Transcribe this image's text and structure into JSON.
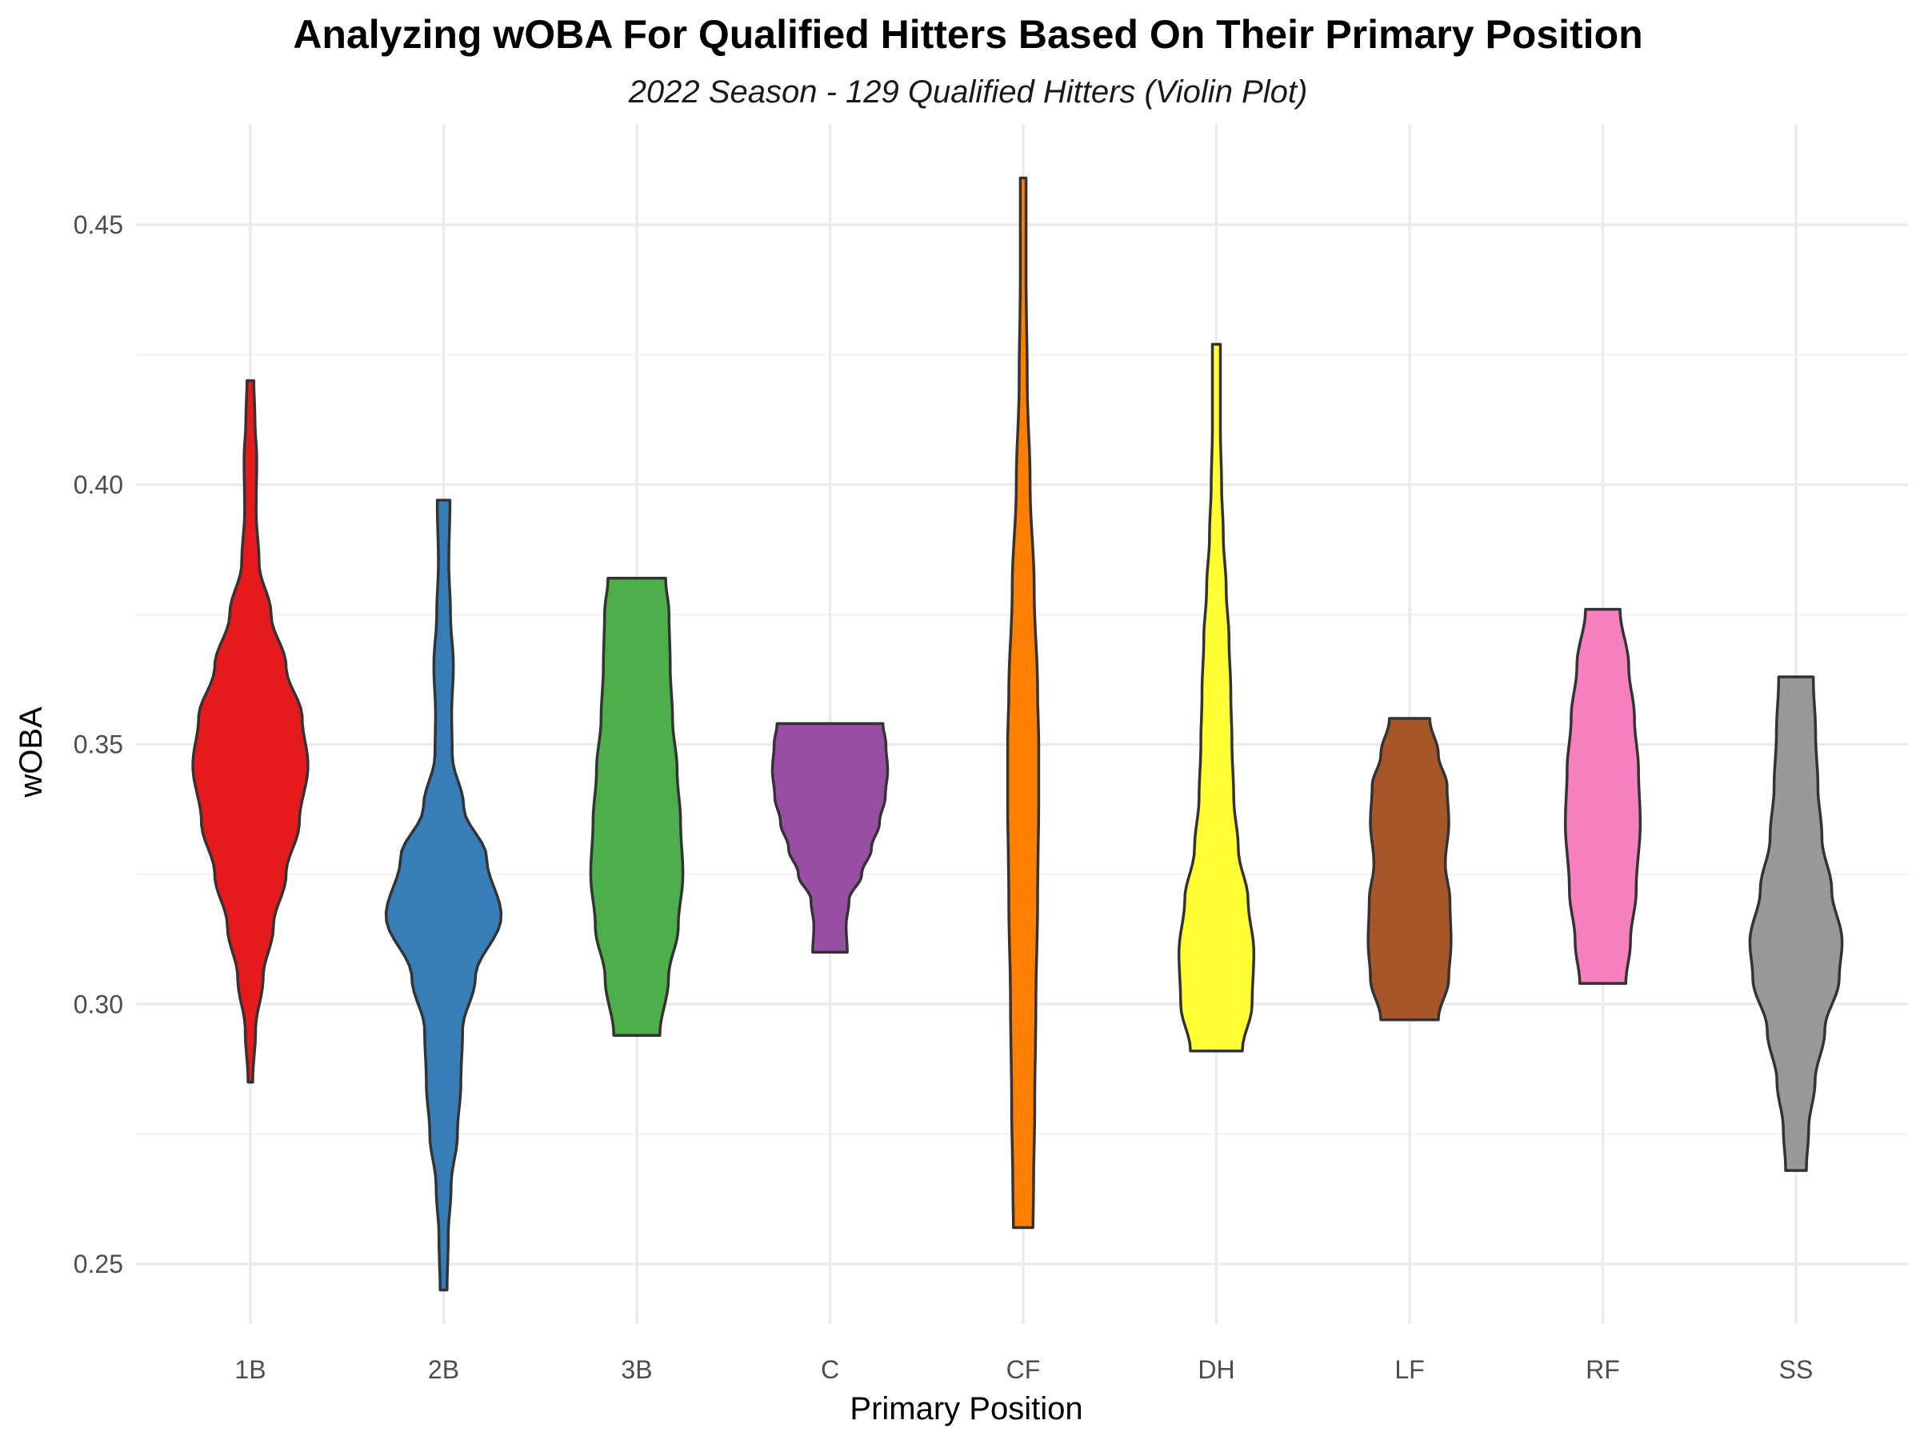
{
  "chart_data": {
    "type": "violin",
    "title": "Analyzing wOBA For Qualified Hitters Based On Their Primary Position",
    "subtitle": "2022 Season - 129 Qualified Hitters (Violin Plot)",
    "xlabel": "Primary Position",
    "ylabel": "wOBA",
    "ylim": [
      0.238,
      0.466
    ],
    "yticks": [
      0.25,
      0.3,
      0.35,
      0.4,
      0.45
    ],
    "ytick_labels": [
      "0.25",
      "0.30",
      "0.35",
      "0.40",
      "0.45"
    ],
    "grid": true,
    "legend": "none",
    "categories": [
      "1B",
      "2B",
      "3B",
      "C",
      "CF",
      "DH",
      "LF",
      "RF",
      "SS"
    ],
    "series": [
      {
        "color": "#E41A1C",
        "min": 0.285,
        "max": 0.42,
        "density": [
          [
            0.285,
            0.04
          ],
          [
            0.295,
            0.09
          ],
          [
            0.305,
            0.22
          ],
          [
            0.315,
            0.4
          ],
          [
            0.325,
            0.62
          ],
          [
            0.335,
            0.85
          ],
          [
            0.346,
            1.0
          ],
          [
            0.355,
            0.9
          ],
          [
            0.365,
            0.62
          ],
          [
            0.375,
            0.36
          ],
          [
            0.385,
            0.15
          ],
          [
            0.395,
            0.1
          ],
          [
            0.405,
            0.11
          ],
          [
            0.412,
            0.08
          ],
          [
            0.42,
            0.06
          ]
        ]
      },
      {
        "color": "#377EB8",
        "min": 0.245,
        "max": 0.397,
        "density": [
          [
            0.245,
            0.06
          ],
          [
            0.255,
            0.08
          ],
          [
            0.265,
            0.13
          ],
          [
            0.275,
            0.24
          ],
          [
            0.285,
            0.3
          ],
          [
            0.295,
            0.33
          ],
          [
            0.305,
            0.55
          ],
          [
            0.317,
            1.0
          ],
          [
            0.328,
            0.75
          ],
          [
            0.338,
            0.35
          ],
          [
            0.348,
            0.15
          ],
          [
            0.356,
            0.14
          ],
          [
            0.365,
            0.17
          ],
          [
            0.375,
            0.12
          ],
          [
            0.385,
            0.09
          ],
          [
            0.397,
            0.11
          ]
        ]
      },
      {
        "color": "#4DAF4A",
        "min": 0.294,
        "max": 0.382,
        "density": [
          [
            0.294,
            0.4
          ],
          [
            0.305,
            0.55
          ],
          [
            0.315,
            0.72
          ],
          [
            0.325,
            0.8
          ],
          [
            0.335,
            0.76
          ],
          [
            0.345,
            0.7
          ],
          [
            0.355,
            0.62
          ],
          [
            0.365,
            0.58
          ],
          [
            0.375,
            0.56
          ],
          [
            0.382,
            0.5
          ]
        ]
      },
      {
        "color": "#984EA3",
        "min": 0.31,
        "max": 0.354,
        "density": [
          [
            0.31,
            0.3
          ],
          [
            0.315,
            0.28
          ],
          [
            0.32,
            0.33
          ],
          [
            0.325,
            0.55
          ],
          [
            0.33,
            0.72
          ],
          [
            0.335,
            0.86
          ],
          [
            0.34,
            0.96
          ],
          [
            0.345,
            1.0
          ],
          [
            0.35,
            0.97
          ],
          [
            0.354,
            0.92
          ]
        ]
      },
      {
        "color": "#FF7F00",
        "min": 0.257,
        "max": 0.459,
        "density": [
          [
            0.257,
            0.17
          ],
          [
            0.265,
            0.18
          ],
          [
            0.28,
            0.2
          ],
          [
            0.3,
            0.22
          ],
          [
            0.32,
            0.25
          ],
          [
            0.34,
            0.27
          ],
          [
            0.35,
            0.27
          ],
          [
            0.36,
            0.25
          ],
          [
            0.38,
            0.19
          ],
          [
            0.4,
            0.12
          ],
          [
            0.42,
            0.07
          ],
          [
            0.44,
            0.05
          ],
          [
            0.459,
            0.05
          ]
        ]
      },
      {
        "color": "#FFFF33",
        "min": 0.291,
        "max": 0.427,
        "density": [
          [
            0.291,
            0.45
          ],
          [
            0.3,
            0.62
          ],
          [
            0.31,
            0.65
          ],
          [
            0.32,
            0.55
          ],
          [
            0.33,
            0.38
          ],
          [
            0.34,
            0.3
          ],
          [
            0.35,
            0.27
          ],
          [
            0.36,
            0.25
          ],
          [
            0.37,
            0.22
          ],
          [
            0.38,
            0.17
          ],
          [
            0.39,
            0.12
          ],
          [
            0.4,
            0.09
          ],
          [
            0.41,
            0.07
          ],
          [
            0.42,
            0.07
          ],
          [
            0.427,
            0.07
          ]
        ]
      },
      {
        "color": "#A65628",
        "min": 0.297,
        "max": 0.355,
        "density": [
          [
            0.297,
            0.5
          ],
          [
            0.305,
            0.68
          ],
          [
            0.312,
            0.72
          ],
          [
            0.32,
            0.7
          ],
          [
            0.327,
            0.62
          ],
          [
            0.335,
            0.68
          ],
          [
            0.342,
            0.65
          ],
          [
            0.348,
            0.5
          ],
          [
            0.355,
            0.35
          ]
        ]
      },
      {
        "color": "#F781BF",
        "min": 0.304,
        "max": 0.376,
        "density": [
          [
            0.304,
            0.4
          ],
          [
            0.312,
            0.48
          ],
          [
            0.322,
            0.58
          ],
          [
            0.335,
            0.65
          ],
          [
            0.345,
            0.62
          ],
          [
            0.355,
            0.55
          ],
          [
            0.365,
            0.45
          ],
          [
            0.376,
            0.3
          ]
        ]
      },
      {
        "color": "#999999",
        "min": 0.268,
        "max": 0.363,
        "density": [
          [
            0.268,
            0.18
          ],
          [
            0.276,
            0.22
          ],
          [
            0.285,
            0.33
          ],
          [
            0.295,
            0.5
          ],
          [
            0.305,
            0.75
          ],
          [
            0.312,
            0.8
          ],
          [
            0.322,
            0.62
          ],
          [
            0.332,
            0.45
          ],
          [
            0.342,
            0.38
          ],
          [
            0.352,
            0.34
          ],
          [
            0.363,
            0.3
          ]
        ]
      }
    ]
  }
}
